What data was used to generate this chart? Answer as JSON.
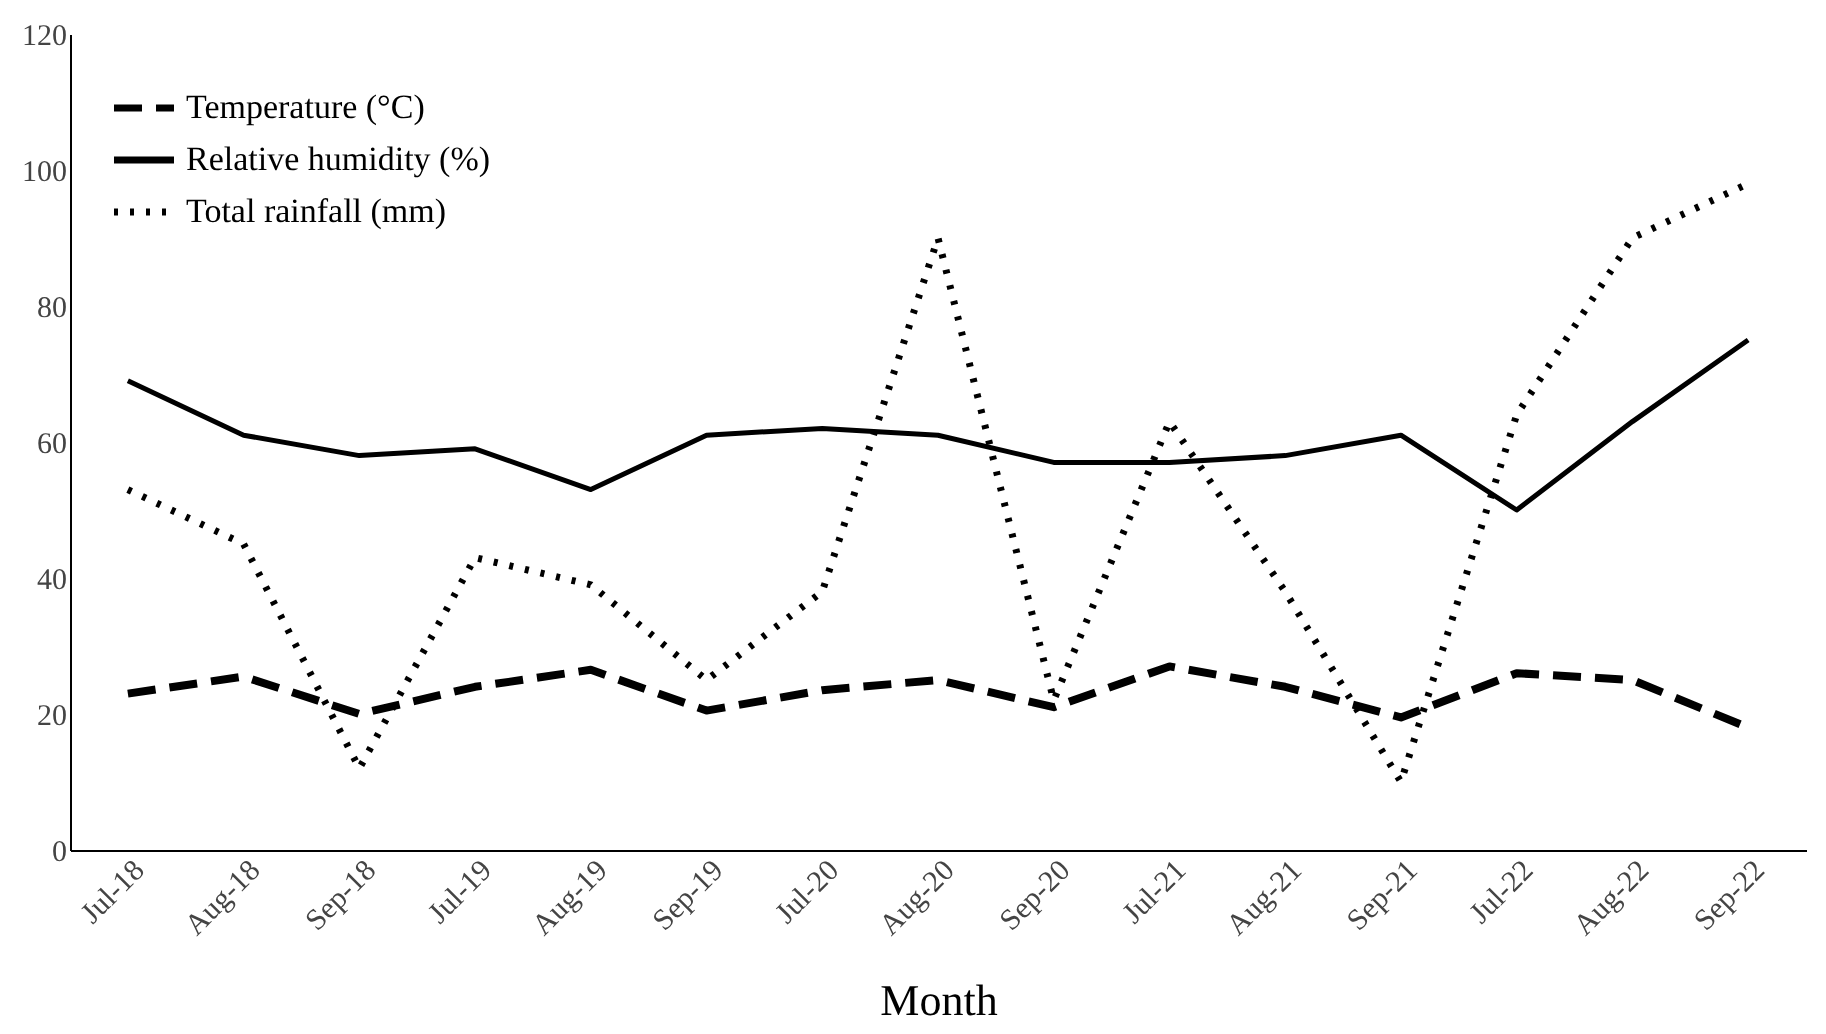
{
  "chart_data": {
    "type": "line",
    "xlabel": "Month",
    "categories": [
      "Jul-18",
      "Aug-18",
      "Sep-18",
      "Jul-19",
      "Aug-19",
      "Sep-19",
      "Jul-20",
      "Aug-20",
      "Sep-20",
      "Jul-21",
      "Aug-21",
      "Sep-21",
      "Jul-22",
      "Aug-22",
      "Sep-22"
    ],
    "series": [
      {
        "name": "Temperature (°C)",
        "color": "#000000",
        "line_style": "dashed",
        "values": [
          23,
          25.5,
          20,
          24,
          26.5,
          20.5,
          23.5,
          25,
          21,
          27,
          24,
          19.5,
          26,
          25,
          18
        ]
      },
      {
        "name": "Relative humidity (%)",
        "color": "#000000",
        "line_style": "solid",
        "values": [
          69,
          61,
          58,
          59,
          53,
          61,
          62,
          61,
          57,
          57,
          58,
          61,
          50,
          63,
          75
        ]
      },
      {
        "name": "Total rainfall (mm)",
        "color": "#000000",
        "line_style": "dotted",
        "values": [
          53,
          45,
          12,
          43,
          39,
          25,
          38,
          90,
          22,
          63,
          38,
          10,
          64,
          90,
          98
        ]
      }
    ],
    "ylim": [
      0,
      120
    ],
    "yticks": [
      0,
      20,
      40,
      60,
      80,
      100,
      120
    ],
    "grid": false,
    "legend": "top left",
    "marker": "none"
  }
}
